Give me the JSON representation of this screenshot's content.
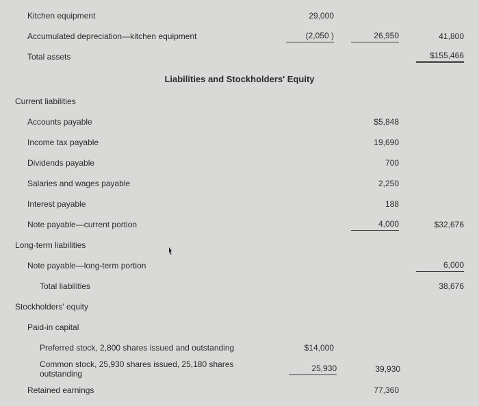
{
  "assets": {
    "kitchen_equipment": {
      "label": "Kitchen equipment",
      "value": "29,000"
    },
    "accum_dep": {
      "label": "Accumulated depreciation—kitchen equipment",
      "value": "(2,050  )",
      "net": "26,950",
      "subtotal": "41,800"
    },
    "total_assets": {
      "label": "Total assets",
      "value": "$155,466"
    }
  },
  "section_title": "Liabilities and Stockholders' Equity",
  "cur_liab": {
    "heading": "Current liabilities",
    "ap": {
      "label": "Accounts payable",
      "value": "$5,848"
    },
    "tax": {
      "label": "Income tax payable",
      "value": "19,690"
    },
    "div": {
      "label": "Dividends payable",
      "value": "700"
    },
    "sal": {
      "label": "Salaries and wages payable",
      "value": "2,250"
    },
    "int": {
      "label": "Interest payable",
      "value": "188"
    },
    "note": {
      "label": "Note payable—current portion",
      "value": "4,000",
      "subtotal": "$32,676"
    }
  },
  "lt_liab": {
    "heading": "Long-term liabilities",
    "note": {
      "label": "Note payable—long-term portion",
      "value": "6,000"
    },
    "total": {
      "label": "Total liabilities",
      "value": "38,676"
    }
  },
  "equity": {
    "heading": "Stockholders' equity",
    "paidcap": "Paid-in capital",
    "pref": {
      "label": "Preferred stock, 2,800 shares issued and outstanding",
      "value": "$14,000"
    },
    "comm": {
      "label": "Common stock, 25,930 shares issued, 25,180 shares outstanding",
      "value": "25,930",
      "subtotal": "39,930"
    },
    "re": {
      "label": "Retained earnings",
      "value": "77,360"
    }
  }
}
